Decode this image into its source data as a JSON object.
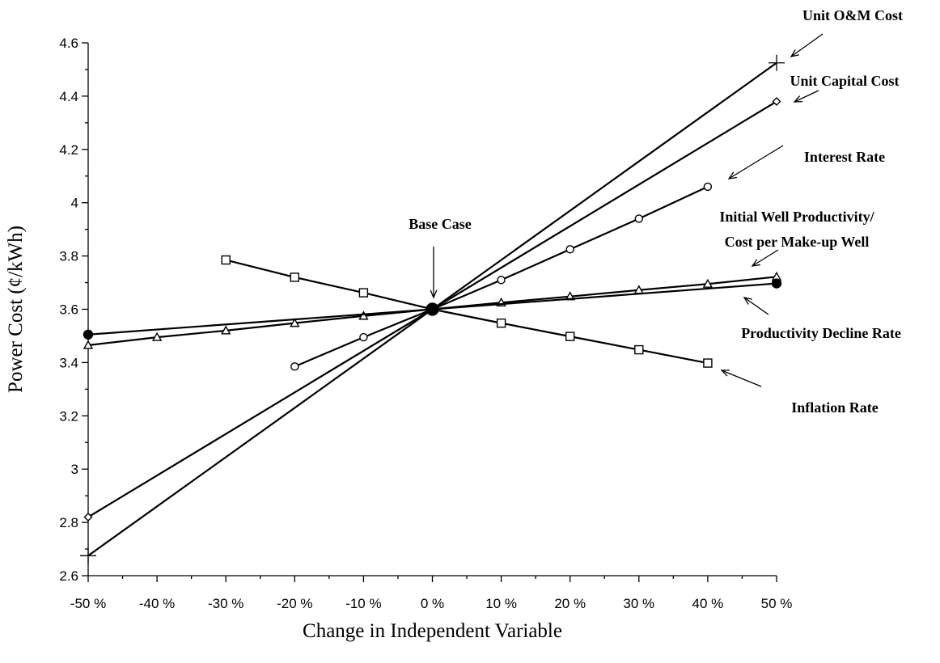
{
  "chart_data": {
    "type": "line",
    "title": "",
    "xlabel": "Change in Independent Variable",
    "ylabel": "Power Cost (¢/kWh)",
    "xlim": [
      -50,
      50
    ],
    "ylim": [
      2.6,
      4.6
    ],
    "x_ticks": [
      -50,
      -40,
      -30,
      -20,
      -10,
      0,
      10,
      20,
      30,
      40,
      50
    ],
    "x_tick_labels": [
      "-50 %",
      "-40 %",
      "-30 %",
      "-20 %",
      "-10 %",
      "0 %",
      "10 %",
      "20 %",
      "30 %",
      "40 %",
      "50 %"
    ],
    "y_ticks": [
      2.6,
      2.8,
      3.0,
      3.2,
      3.4,
      3.6,
      3.8,
      4.0,
      4.2,
      4.4,
      4.6
    ],
    "y_tick_labels": [
      "2.6",
      "2.8",
      "3",
      "3.2",
      "3.4",
      "3.6",
      "3.8",
      "4",
      "4.2",
      "4.4",
      "4.6"
    ],
    "grid": false,
    "legend": "none",
    "series": [
      {
        "name": "Unit O&M Cost",
        "marker": "plus",
        "points": [
          [
            -50,
            2.675
          ],
          [
            0,
            3.6
          ],
          [
            50,
            4.525
          ]
        ]
      },
      {
        "name": "Unit Capital Cost",
        "marker": "diamond",
        "points": [
          [
            -50,
            2.82
          ],
          [
            0,
            3.6
          ],
          [
            50,
            4.38
          ]
        ]
      },
      {
        "name": "Interest Rate",
        "marker": "circle",
        "points": [
          [
            -20,
            3.385
          ],
          [
            -10,
            3.495
          ],
          [
            0,
            3.6
          ],
          [
            10,
            3.71
          ],
          [
            20,
            3.825
          ],
          [
            30,
            3.94
          ],
          [
            40,
            4.06
          ]
        ]
      },
      {
        "name": "Initial Well Productivity/ Cost per Make-up Well",
        "marker": "triangle",
        "points": [
          [
            -50,
            3.465
          ],
          [
            -40,
            3.495
          ],
          [
            -30,
            3.52
          ],
          [
            -20,
            3.548
          ],
          [
            -10,
            3.575
          ],
          [
            0,
            3.6
          ],
          [
            10,
            3.625
          ],
          [
            20,
            3.648
          ],
          [
            30,
            3.672
          ],
          [
            40,
            3.695
          ],
          [
            50,
            3.722
          ]
        ]
      },
      {
        "name": "Productivity Decline Rate",
        "marker": "filled-circle",
        "points": [
          [
            -50,
            3.505
          ],
          [
            0,
            3.6
          ],
          [
            50,
            3.697
          ]
        ]
      },
      {
        "name": "Inflation Rate",
        "marker": "square",
        "points": [
          [
            -30,
            3.785
          ],
          [
            -20,
            3.72
          ],
          [
            -10,
            3.662
          ],
          [
            0,
            3.6
          ],
          [
            10,
            3.548
          ],
          [
            20,
            3.498
          ],
          [
            30,
            3.448
          ],
          [
            40,
            3.398
          ]
        ]
      }
    ],
    "annotations": [
      {
        "text": "Unit O&M Cost",
        "series": "Unit O&M Cost"
      },
      {
        "text": "Unit Capital Cost",
        "series": "Unit Capital Cost"
      },
      {
        "text": "Interest Rate",
        "series": "Interest Rate"
      },
      {
        "text": "Initial Well Productivity/",
        "text2": "Cost per Make-up Well",
        "series": "Initial Well Productivity/ Cost per Make-up Well"
      },
      {
        "text": "Productivity Decline Rate",
        "series": "Productivity Decline Rate"
      },
      {
        "text": "Inflation Rate",
        "series": "Inflation Rate"
      },
      {
        "text": "Base Case",
        "series": "base"
      }
    ]
  }
}
